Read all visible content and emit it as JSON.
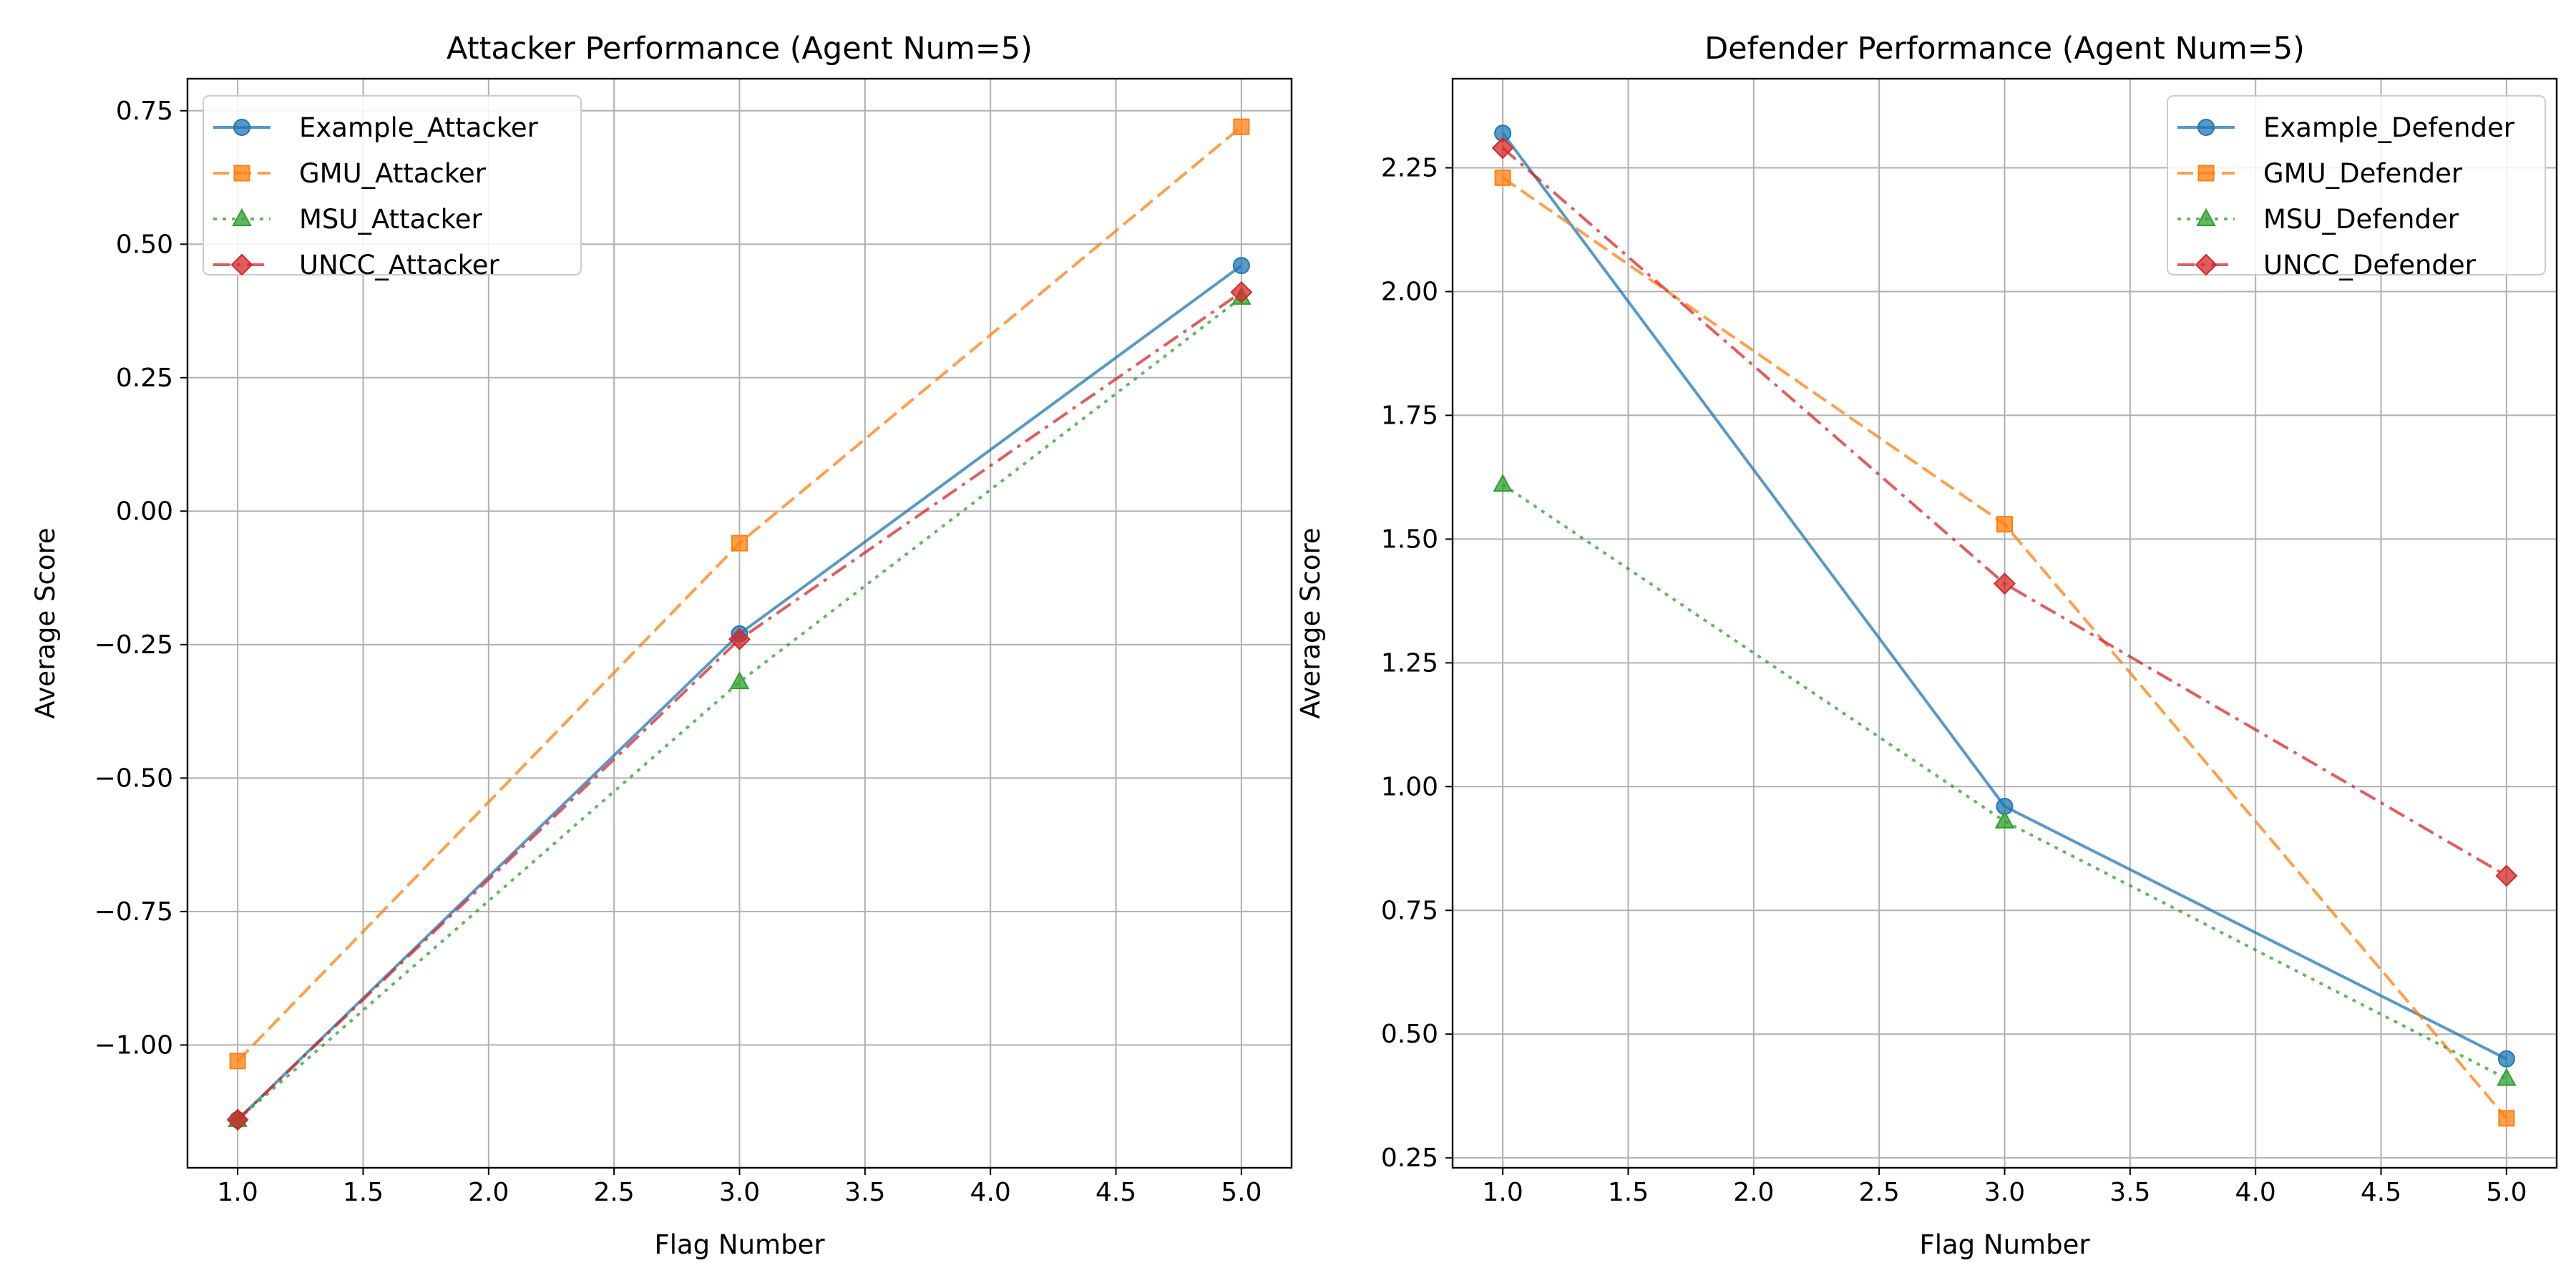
{
  "chart_data": [
    {
      "type": "line",
      "title": "Attacker Performance (Agent Num=5)",
      "xlabel": "Flag Number",
      "ylabel": "Average Score",
      "x": [
        1.0,
        3.0,
        5.0
      ],
      "xlim": [
        0.8,
        5.2
      ],
      "ylim": [
        -1.23,
        0.81
      ],
      "xticks": [
        1.0,
        1.5,
        2.0,
        2.5,
        3.0,
        3.5,
        4.0,
        4.5,
        5.0
      ],
      "xtick_labels": [
        "1.0",
        "1.5",
        "2.0",
        "2.5",
        "3.0",
        "3.5",
        "4.0",
        "4.5",
        "5.0"
      ],
      "yticks": [
        -1.0,
        -0.75,
        -0.5,
        -0.25,
        0.0,
        0.25,
        0.5,
        0.75
      ],
      "ytick_labels": [
        "−1.00",
        "−0.75",
        "−0.50",
        "−0.25",
        "0.00",
        "0.25",
        "0.50",
        "0.75"
      ],
      "grid": true,
      "legend_position": "top-left",
      "series": [
        {
          "name": "Example_Attacker",
          "values": [
            -1.14,
            -0.23,
            0.46
          ],
          "color": "#1f77b4",
          "marker": "circle",
          "dash": "solid"
        },
        {
          "name": "GMU_Attacker",
          "values": [
            -1.03,
            -0.06,
            0.72
          ],
          "color": "#ff7f0e",
          "marker": "square",
          "dash": "dashed"
        },
        {
          "name": "MSU_Attacker",
          "values": [
            -1.14,
            -0.32,
            0.4
          ],
          "color": "#2ca02c",
          "marker": "triangle",
          "dash": "dotted"
        },
        {
          "name": "UNCC_Attacker",
          "values": [
            -1.14,
            -0.24,
            0.41
          ],
          "color": "#d62728",
          "marker": "diamond",
          "dash": "dashdot"
        }
      ]
    },
    {
      "type": "line",
      "title": "Defender Performance (Agent Num=5)",
      "xlabel": "Flag Number",
      "ylabel": "Average Score",
      "x": [
        1.0,
        3.0,
        5.0
      ],
      "xlim": [
        0.8,
        5.2
      ],
      "ylim": [
        0.23,
        2.43
      ],
      "xticks": [
        1.0,
        1.5,
        2.0,
        2.5,
        3.0,
        3.5,
        4.0,
        4.5,
        5.0
      ],
      "xtick_labels": [
        "1.0",
        "1.5",
        "2.0",
        "2.5",
        "3.0",
        "3.5",
        "4.0",
        "4.5",
        "5.0"
      ],
      "yticks": [
        0.25,
        0.5,
        0.75,
        1.0,
        1.25,
        1.5,
        1.75,
        2.0,
        2.25
      ],
      "ytick_labels": [
        "0.25",
        "0.50",
        "0.75",
        "1.00",
        "1.25",
        "1.50",
        "1.75",
        "2.00",
        "2.25"
      ],
      "grid": true,
      "legend_position": "top-right",
      "series": [
        {
          "name": "Example_Defender",
          "values": [
            2.32,
            0.96,
            0.45
          ],
          "color": "#1f77b4",
          "marker": "circle",
          "dash": "solid"
        },
        {
          "name": "GMU_Defender",
          "values": [
            2.23,
            1.53,
            0.33
          ],
          "color": "#ff7f0e",
          "marker": "square",
          "dash": "dashed"
        },
        {
          "name": "MSU_Defender",
          "values": [
            1.61,
            0.93,
            0.41
          ],
          "color": "#2ca02c",
          "marker": "triangle",
          "dash": "dotted"
        },
        {
          "name": "UNCC_Defender",
          "values": [
            2.29,
            1.41,
            0.82
          ],
          "color": "#d62728",
          "marker": "diamond",
          "dash": "dashdot"
        }
      ]
    }
  ]
}
